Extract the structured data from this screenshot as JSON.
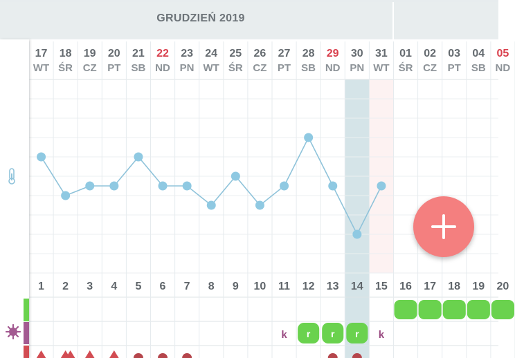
{
  "header": {
    "month_title": "GRUDZIEŃ 2019"
  },
  "days": [
    {
      "num": "17",
      "dow": "WT",
      "sunday": false
    },
    {
      "num": "18",
      "dow": "ŚR",
      "sunday": false
    },
    {
      "num": "19",
      "dow": "CZ",
      "sunday": false
    },
    {
      "num": "20",
      "dow": "PT",
      "sunday": false
    },
    {
      "num": "21",
      "dow": "SB",
      "sunday": false
    },
    {
      "num": "22",
      "dow": "ND",
      "sunday": true
    },
    {
      "num": "23",
      "dow": "PN",
      "sunday": false
    },
    {
      "num": "24",
      "dow": "WT",
      "sunday": false
    },
    {
      "num": "25",
      "dow": "ŚR",
      "sunday": false
    },
    {
      "num": "26",
      "dow": "CZ",
      "sunday": false
    },
    {
      "num": "27",
      "dow": "PT",
      "sunday": false
    },
    {
      "num": "28",
      "dow": "SB",
      "sunday": false
    },
    {
      "num": "29",
      "dow": "ND",
      "sunday": true
    },
    {
      "num": "30",
      "dow": "PN",
      "sunday": false
    },
    {
      "num": "31",
      "dow": "WT",
      "sunday": false
    },
    {
      "num": "01",
      "dow": "ŚR",
      "sunday": false
    },
    {
      "num": "02",
      "dow": "CZ",
      "sunday": false
    },
    {
      "num": "03",
      "dow": "PT",
      "sunday": false
    },
    {
      "num": "04",
      "dow": "SB",
      "sunday": false
    },
    {
      "num": "05",
      "dow": "ND",
      "sunday": true
    }
  ],
  "cycle_days": [
    "1",
    "2",
    "3",
    "4",
    "5",
    "6",
    "7",
    "8",
    "9",
    "10",
    "11",
    "12",
    "13",
    "14",
    "15",
    "16",
    "17",
    "18",
    "19",
    "20"
  ],
  "temperature_levels": [
    3,
    5,
    4.5,
    4.5,
    3,
    4.5,
    4.5,
    5.5,
    4,
    5.5,
    4.5,
    2,
    4.5,
    7,
    4.5
  ],
  "highlight": {
    "selected_day_index": 13,
    "today_day_index": 14
  },
  "k_marks": [
    {
      "day_index": 10,
      "text": "k"
    },
    {
      "day_index": 14,
      "text": "k"
    }
  ],
  "green_scribble_days": [
    15,
    16,
    17,
    18,
    19
  ],
  "mucus_days": [
    11,
    12,
    13
  ],
  "mucus_label": "r",
  "bleeding_triangles": [
    0,
    1,
    2,
    3
  ],
  "bleeding_dots": [
    4,
    5,
    6,
    12,
    13
  ],
  "icons": {
    "thermometer": "thermometer-icon",
    "virus": "virus-icon",
    "add": "plus-icon"
  },
  "colors": {
    "line": "#8fc3da",
    "dot": "#8fc9e2",
    "sunday": "#d9414e",
    "selected_col": "#d5e4e8",
    "today_col": "#fdf2f2",
    "fab": "#f47f7f",
    "green": "#6ad24e",
    "purple": "#9a4b82",
    "red_mark": "#d24c52",
    "dark_red_dot": "#b5464c"
  }
}
